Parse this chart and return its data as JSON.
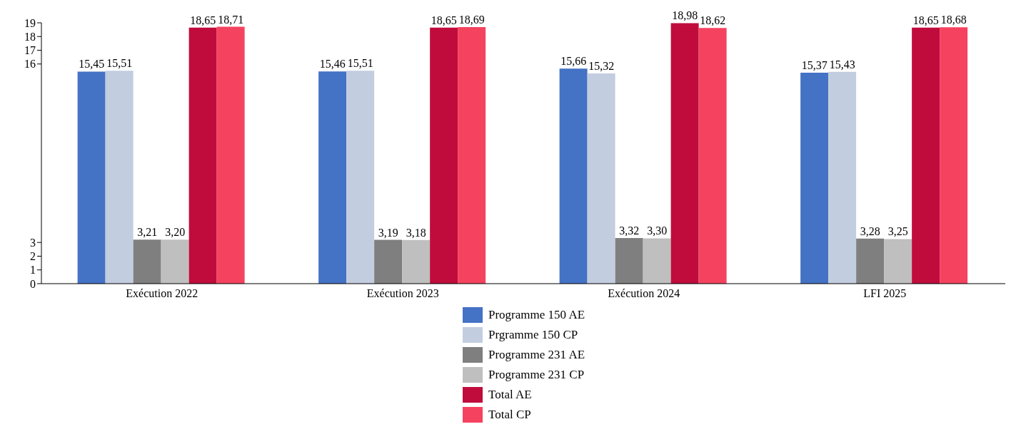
{
  "chart_data": {
    "type": "bar",
    "categories": [
      "Exécution 2022",
      "Exécution 2023",
      "Exécution 2024",
      "LFI 2025"
    ],
    "series": [
      {
        "name": "Programme 150 AE",
        "color": "#4472c4",
        "values": [
          15.45,
          15.46,
          15.66,
          15.37
        ],
        "value_labels": [
          "15,45",
          "15,46",
          "15,66",
          "15,37"
        ]
      },
      {
        "name": "Prgramme 150 CP",
        "color": "#c3cde0",
        "values": [
          15.51,
          15.51,
          15.32,
          15.43
        ],
        "value_labels": [
          "15,51",
          "15,51",
          "15,32",
          "15,43"
        ]
      },
      {
        "name": "Programme 231 AE",
        "color": "#7f7f7f",
        "values": [
          3.21,
          3.19,
          3.32,
          3.28
        ],
        "value_labels": [
          "3,21",
          "3,19",
          "3,32",
          "3,28"
        ]
      },
      {
        "name": "Programme 231 CP",
        "color": "#bfbfbf",
        "values": [
          3.2,
          3.18,
          3.3,
          3.25
        ],
        "value_labels": [
          "3,20",
          "3,18",
          "3,30",
          "3,25"
        ]
      },
      {
        "name": "Total AE",
        "color": "#c00c3c",
        "values": [
          18.65,
          18.65,
          18.98,
          18.65
        ],
        "value_labels": [
          "18,65",
          "18,65",
          "18,98",
          "18,65"
        ]
      },
      {
        "name": "Total CP",
        "color": "#f5435f",
        "values": [
          18.71,
          18.69,
          18.62,
          18.68
        ],
        "value_labels": [
          "18,71",
          "18,69",
          "18,62",
          "18,68"
        ]
      }
    ],
    "ylim": [
      0,
      19
    ],
    "yticks": [
      0,
      1,
      2,
      3,
      16,
      17,
      18,
      19
    ],
    "grid": false,
    "legend": "bottom"
  }
}
